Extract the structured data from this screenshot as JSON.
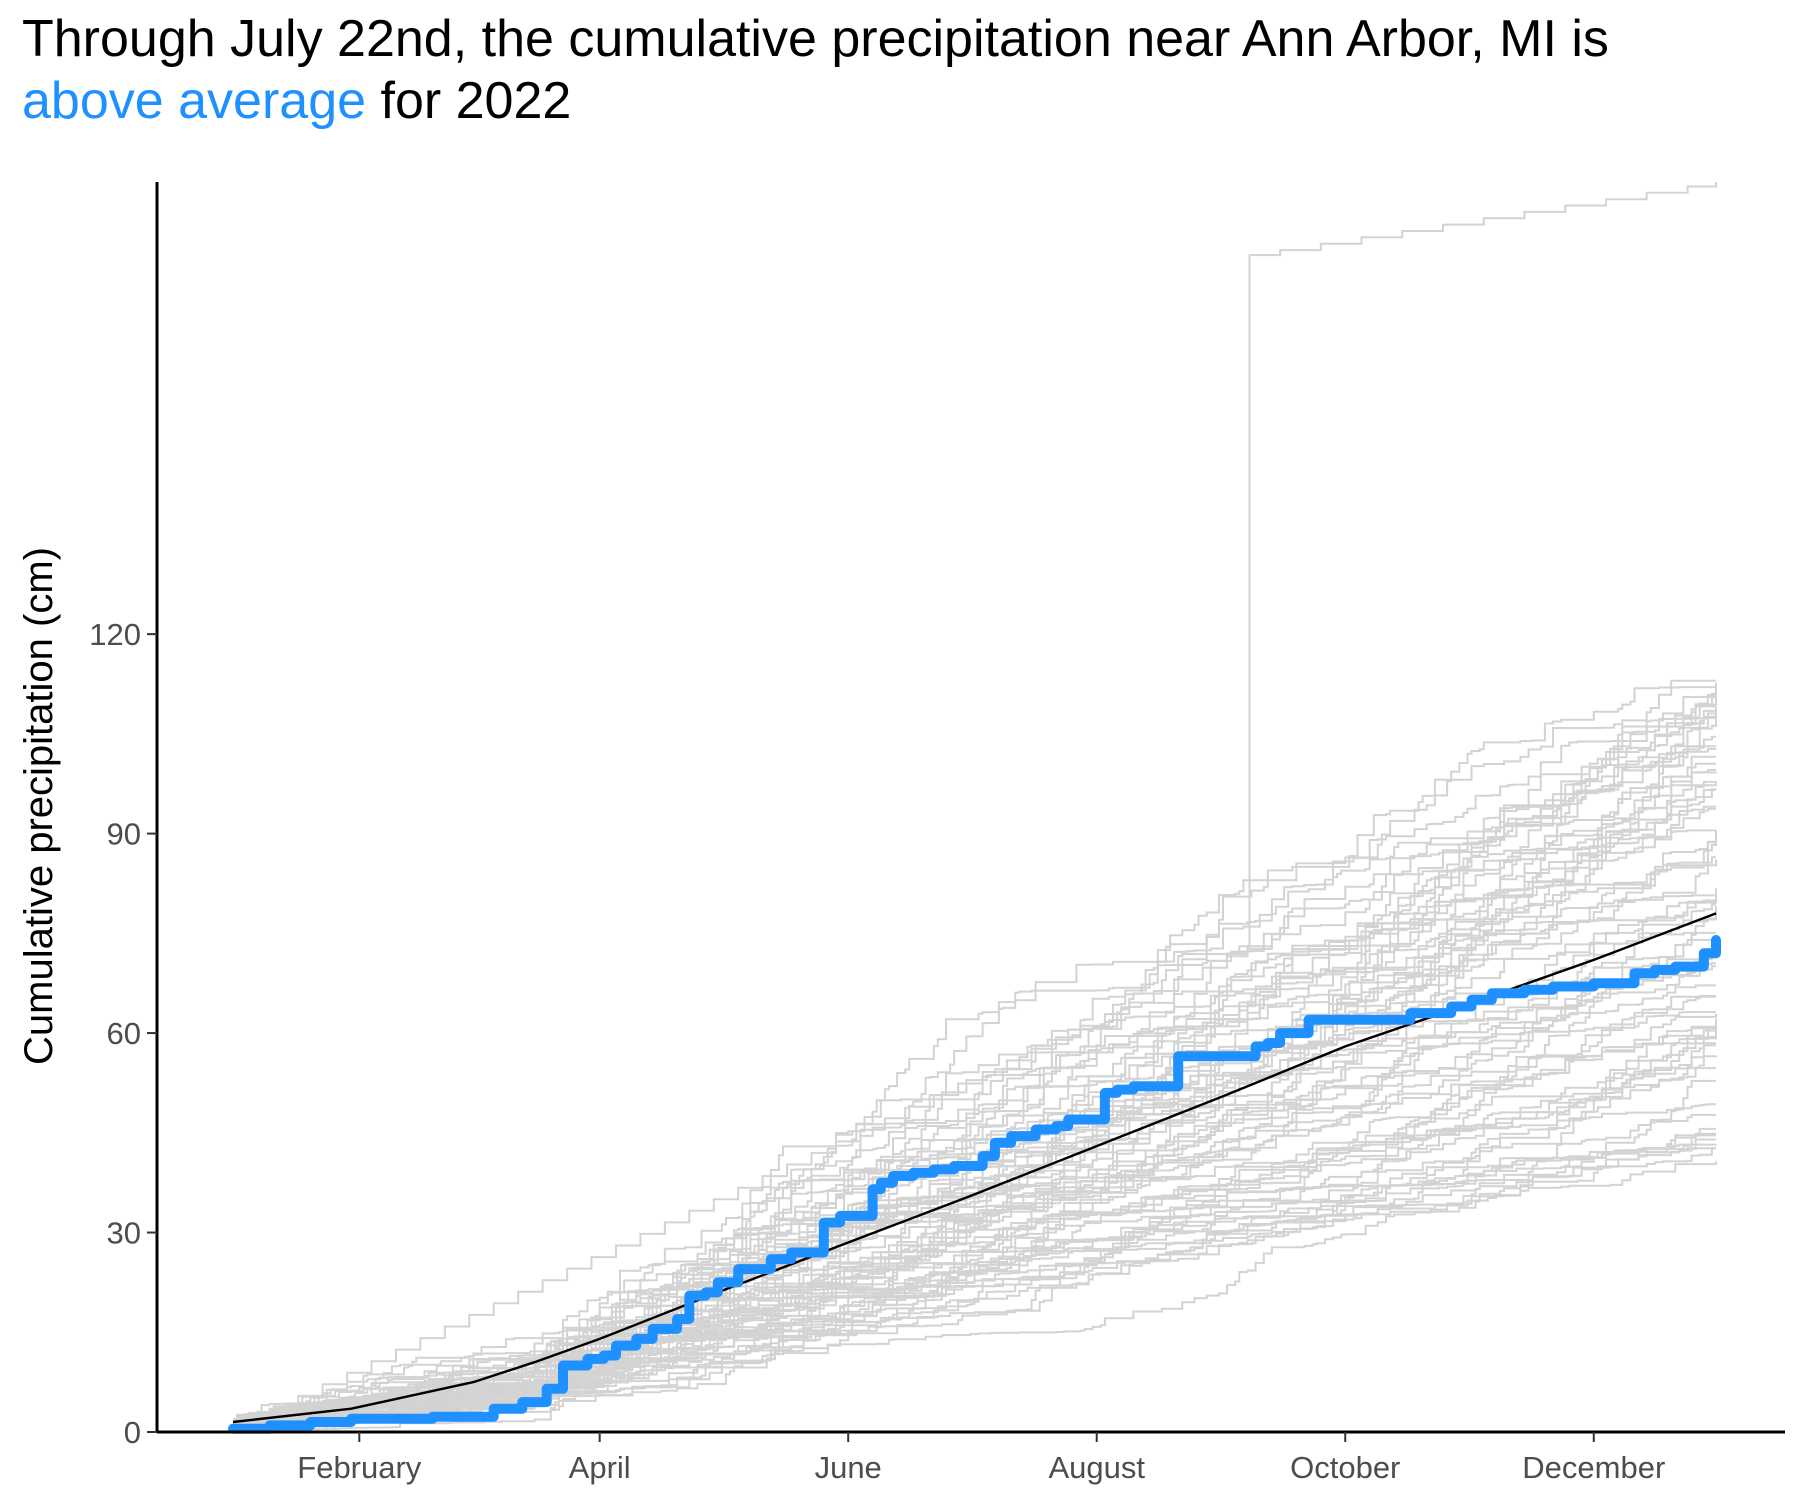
{
  "chart_data": {
    "type": "line",
    "title": {
      "line1": "Through July 22nd, the cumulative precipitation near Ann Arbor, MI is",
      "highlight": "above average",
      "rest": " for 2022"
    },
    "xlabel": "",
    "ylabel": "Cumulative precipitation (cm)",
    "x_unit": "day_of_year",
    "xlim": [
      1,
      365
    ],
    "ylim": [
      0,
      188
    ],
    "y_ticks": [
      0,
      30,
      60,
      90,
      120
    ],
    "x_ticks": [
      {
        "label": "February",
        "day": 32
      },
      {
        "label": "April",
        "day": 91
      },
      {
        "label": "June",
        "day": 152
      },
      {
        "label": "August",
        "day": 213
      },
      {
        "label": "October",
        "day": 274
      },
      {
        "label": "December",
        "day": 335
      }
    ],
    "grid": false,
    "legend": "none",
    "colors": {
      "current_year": "#1e90ff",
      "historical": "#d3d3d3",
      "average": "#000000",
      "text": "#000000",
      "tick_text": "#4d4d4d"
    },
    "series": [
      {
        "role": "average",
        "x": [
          1,
          30,
          60,
          75,
          91,
          120,
          152,
          182,
          213,
          244,
          274,
          305,
          335,
          365
        ],
        "y": [
          1.5,
          3.5,
          7.5,
          10.5,
          14,
          21,
          28.5,
          35.5,
          43,
          50.5,
          58,
          64.5,
          71,
          78
        ]
      },
      {
        "name": "2022",
        "role": "current_year",
        "x": [
          1,
          10,
          20,
          30,
          50,
          63,
          65,
          72,
          75,
          78,
          82,
          88,
          92,
          95,
          100,
          104,
          110,
          113,
          117,
          120,
          125,
          130,
          133,
          138,
          143,
          146,
          150,
          153,
          158,
          160,
          163,
          168,
          173,
          178,
          185,
          188,
          192,
          198,
          203,
          206,
          210,
          215,
          218,
          222,
          228,
          233,
          237,
          240,
          243,
          247,
          252,
          255,
          258,
          265,
          270,
          280,
          290,
          300,
          305,
          310,
          318,
          325,
          330,
          335,
          345,
          350,
          355,
          362,
          365
        ],
        "y": [
          0.5,
          1,
          1.5,
          2,
          2.3,
          2.3,
          3.5,
          4.5,
          4.5,
          6.5,
          10,
          11,
          11.5,
          13,
          14,
          15.5,
          17,
          20.5,
          21,
          22.5,
          24.5,
          24.5,
          26,
          27,
          27,
          31.5,
          32.5,
          32.5,
          36.5,
          37.5,
          38.5,
          39,
          39.5,
          40,
          41.5,
          43.5,
          44.5,
          45.5,
          46,
          47,
          47,
          51,
          51.5,
          52,
          52,
          56.5,
          56.5,
          56.5,
          56.5,
          56.5,
          58,
          58.5,
          60,
          62,
          62,
          62,
          63,
          64,
          65,
          66,
          66.5,
          67,
          67,
          67.5,
          69,
          69.5,
          70,
          72,
          74
        ]
      }
    ],
    "historical_summary": {
      "count": 70,
      "end_range": [
        40,
        113
      ],
      "outlier": {
        "jump_day": 250,
        "from": 73,
        "to": 177,
        "end": 188
      }
    }
  }
}
